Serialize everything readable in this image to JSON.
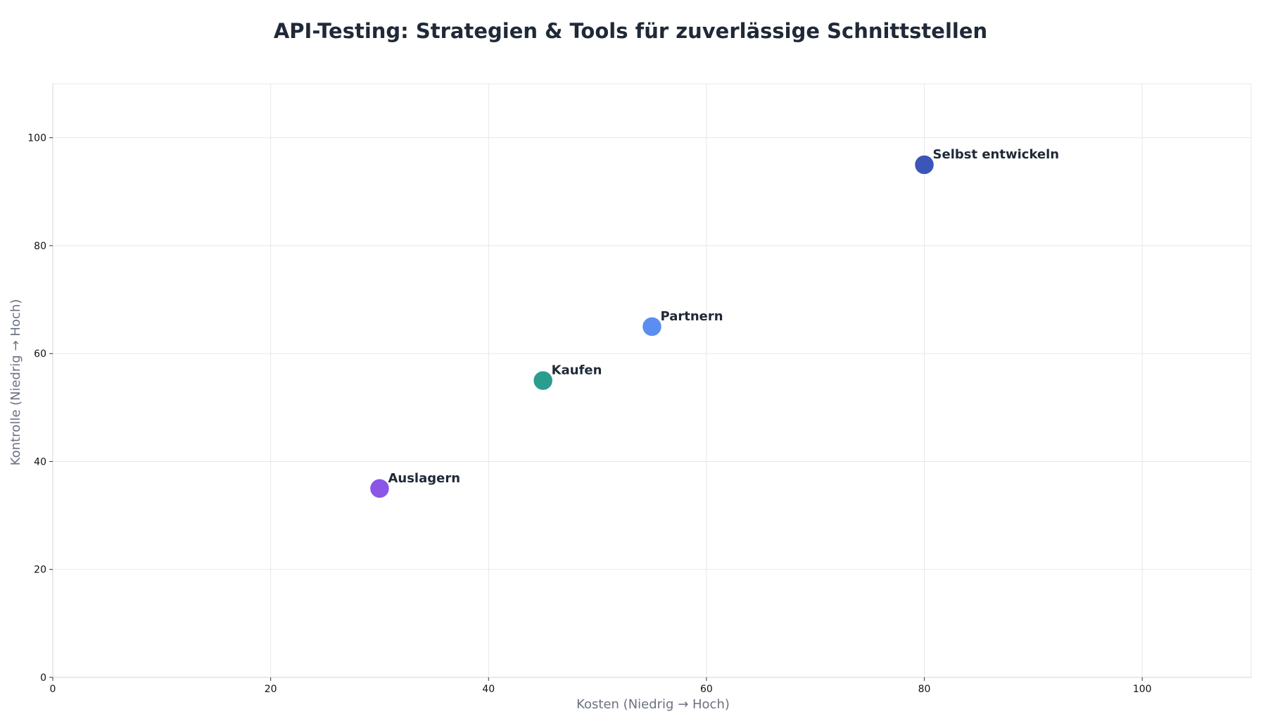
{
  "chart_data": {
    "type": "scatter",
    "title": "API-Testing: Strategien & Tools für zuverlässige Schnittstellen",
    "xlabel": "Kosten (Niedrig → Hoch)",
    "ylabel": "Kontrolle (Niedrig → Hoch)",
    "xlim": [
      0,
      110
    ],
    "ylim": [
      0,
      110
    ],
    "xticks": [
      0,
      20,
      40,
      60,
      80,
      100
    ],
    "yticks": [
      0,
      20,
      40,
      60,
      80,
      100
    ],
    "grid": true,
    "points": [
      {
        "label": "Auslagern",
        "x": 30,
        "y": 35,
        "color": "#8b55e8"
      },
      {
        "label": "Kaufen",
        "x": 45,
        "y": 55,
        "color": "#2a9d8f"
      },
      {
        "label": "Partnern",
        "x": 55,
        "y": 65,
        "color": "#5b8ef0"
      },
      {
        "label": "Selbst entwickeln",
        "x": 80,
        "y": 95,
        "color": "#3b55b8"
      }
    ]
  }
}
